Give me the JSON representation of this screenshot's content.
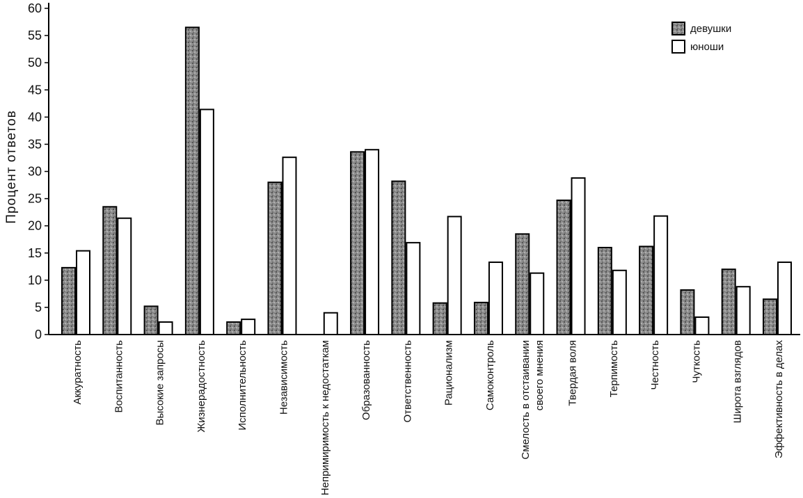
{
  "chart_data": {
    "type": "bar",
    "title": "",
    "xlabel": "",
    "ylabel": "Процент ответов",
    "ylim": [
      0,
      60
    ],
    "yticks": [
      0,
      5,
      10,
      15,
      20,
      25,
      30,
      35,
      40,
      45,
      50,
      55,
      60
    ],
    "grid": false,
    "legend_position": "top-right",
    "categories": [
      "Аккуратность",
      "Воспитанность",
      "Высокие запросы",
      "Жизнерадостность",
      "Исполнительность",
      "Независимость",
      "Непримиримость к недостаткам",
      "Образованность",
      "Ответственность",
      "Рационализм",
      "Самоконтроль",
      "Смелость в отстаивании своего мнения",
      "Твердая воля",
      "Терпимость",
      "Честность",
      "Чуткость",
      "Широта взглядов",
      "Эффективность в делах"
    ],
    "series": [
      {
        "name": "девушки",
        "values": [
          12.3,
          23.5,
          5.2,
          56.5,
          2.3,
          28.0,
          0,
          33.6,
          28.2,
          5.8,
          5.9,
          18.5,
          24.7,
          16.0,
          16.2,
          8.2,
          12.0,
          6.5
        ]
      },
      {
        "name": "юноши",
        "values": [
          15.4,
          21.4,
          2.3,
          41.4,
          2.8,
          32.6,
          4.0,
          34.0,
          16.9,
          21.7,
          13.3,
          11.3,
          28.8,
          11.8,
          21.8,
          3.2,
          8.8,
          13.3
        ]
      }
    ],
    "colors": {
      "series_1_fill": "#9a9a9a",
      "series_2_fill": "#ffffff",
      "stroke": "#000000"
    }
  }
}
